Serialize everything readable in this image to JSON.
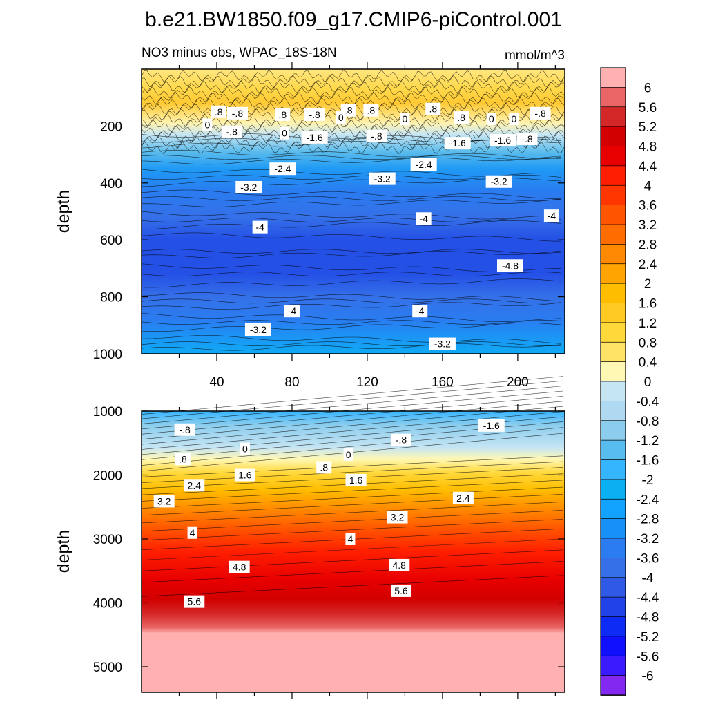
{
  "title": "b.e21.BW1850.f09_g17.CMIP6-piControl.001",
  "subtitle_left": "NO3 minus obs, WPAC_18S-18N",
  "subtitle_right": "mmol/m^3",
  "chart_data": [
    {
      "type": "heatmap",
      "panel": "upper",
      "variable": "NO3 minus obs",
      "region": "WPAC_18S-18N",
      "units": "mmol/m^3",
      "ylabel": "depth",
      "xlabel": "",
      "xlim": [
        0,
        225
      ],
      "ylim": [
        1000,
        0
      ],
      "xticks": [
        40,
        80,
        120,
        160,
        200
      ],
      "xtick_labels": [
        "40",
        "80",
        "120",
        "160",
        "200"
      ],
      "yticks": [
        200,
        400,
        600,
        800,
        1000
      ],
      "ytick_labels": [
        "200",
        "400",
        "600",
        "800",
        "1000"
      ],
      "contour_labels": [
        {
          "x": 41,
          "y": 150,
          "text": ".8"
        },
        {
          "x": 51,
          "y": 155,
          "text": "-.8"
        },
        {
          "x": 75,
          "y": 160,
          "text": ".8"
        },
        {
          "x": 92,
          "y": 160,
          "text": "-.8"
        },
        {
          "x": 110,
          "y": 145,
          "text": ".8"
        },
        {
          "x": 122,
          "y": 145,
          "text": ".8"
        },
        {
          "x": 155,
          "y": 140,
          "text": ".8"
        },
        {
          "x": 35,
          "y": 195,
          "text": "0"
        },
        {
          "x": 48,
          "y": 220,
          "text": "-.8"
        },
        {
          "x": 76,
          "y": 225,
          "text": "0"
        },
        {
          "x": 92,
          "y": 240,
          "text": "-1.6"
        },
        {
          "x": 106,
          "y": 170,
          "text": "0"
        },
        {
          "x": 125,
          "y": 235,
          "text": "-.8"
        },
        {
          "x": 140,
          "y": 175,
          "text": "0"
        },
        {
          "x": 170,
          "y": 170,
          "text": ".8"
        },
        {
          "x": 186,
          "y": 175,
          "text": "0"
        },
        {
          "x": 198,
          "y": 175,
          "text": "0"
        },
        {
          "x": 212,
          "y": 155,
          "text": "-.8"
        },
        {
          "x": 168,
          "y": 260,
          "text": "-1.6"
        },
        {
          "x": 192,
          "y": 250,
          "text": "-1.6"
        },
        {
          "x": 205,
          "y": 245,
          "text": "-.8"
        },
        {
          "x": 75,
          "y": 350,
          "text": "-2.4"
        },
        {
          "x": 150,
          "y": 335,
          "text": "-2.4"
        },
        {
          "x": 128,
          "y": 385,
          "text": "-3.2"
        },
        {
          "x": 190,
          "y": 395,
          "text": "-3.2"
        },
        {
          "x": 57,
          "y": 415,
          "text": "-3.2"
        },
        {
          "x": 150,
          "y": 525,
          "text": "-4"
        },
        {
          "x": 218,
          "y": 515,
          "text": "-4"
        },
        {
          "x": 63,
          "y": 555,
          "text": "-4"
        },
        {
          "x": 196,
          "y": 690,
          "text": "-4.8"
        },
        {
          "x": 80,
          "y": 850,
          "text": "-4"
        },
        {
          "x": 148,
          "y": 850,
          "text": "-4"
        },
        {
          "x": 62,
          "y": 915,
          "text": "-3.2"
        },
        {
          "x": 160,
          "y": 965,
          "text": "-3.2"
        }
      ]
    },
    {
      "type": "heatmap",
      "panel": "lower",
      "ylabel": "depth",
      "xlabel": "",
      "xlim": [
        0,
        225
      ],
      "ylim": [
        5400,
        1000
      ],
      "yticks": [
        1000,
        2000,
        3000,
        4000,
        5000
      ],
      "ytick_labels": [
        "1000",
        "2000",
        "3000",
        "4000",
        "5000"
      ],
      "contour_labels": [
        {
          "x": 23,
          "y": 1290,
          "text": "-.8"
        },
        {
          "x": 138,
          "y": 1450,
          "text": "-.8"
        },
        {
          "x": 186,
          "y": 1225,
          "text": "-1.6"
        },
        {
          "x": 55,
          "y": 1590,
          "text": "0"
        },
        {
          "x": 110,
          "y": 1680,
          "text": "0"
        },
        {
          "x": 22,
          "y": 1750,
          "text": ".8"
        },
        {
          "x": 97,
          "y": 1880,
          "text": ".8"
        },
        {
          "x": 55,
          "y": 2000,
          "text": "1.6"
        },
        {
          "x": 114,
          "y": 2080,
          "text": "1.6"
        },
        {
          "x": 28,
          "y": 2160,
          "text": "2.4"
        },
        {
          "x": 171,
          "y": 2360,
          "text": "2.4"
        },
        {
          "x": 12,
          "y": 2410,
          "text": "3.2"
        },
        {
          "x": 136,
          "y": 2660,
          "text": "3.2"
        },
        {
          "x": 27,
          "y": 2900,
          "text": "4"
        },
        {
          "x": 111,
          "y": 3000,
          "text": "4"
        },
        {
          "x": 52,
          "y": 3440,
          "text": "4.8"
        },
        {
          "x": 137,
          "y": 3410,
          "text": "4.8"
        },
        {
          "x": 28,
          "y": 3980,
          "text": "5.6"
        },
        {
          "x": 138,
          "y": 3810,
          "text": "5.6"
        }
      ]
    }
  ],
  "colorbar": {
    "labels": [
      "6",
      "5.6",
      "5.2",
      "4.8",
      "4.4",
      "4",
      "3.6",
      "3.2",
      "2.8",
      "2.4",
      "2",
      "1.6",
      "1.2",
      "0.8",
      "0.4",
      "0",
      "-0.4",
      "-0.8",
      "-1.2",
      "-1.6",
      "-2",
      "-2.4",
      "-2.8",
      "-3.2",
      "-3.6",
      "-4",
      "-4.4",
      "-4.8",
      "-5.2",
      "-5.6",
      "-6"
    ],
    "colors": [
      "#ffb1b1",
      "#ea6565",
      "#d42828",
      "#d20000",
      "#e80000",
      "#ff1f00",
      "#ff3600",
      "#ff5400",
      "#ff6d00",
      "#ff8900",
      "#ffa400",
      "#ffbd00",
      "#ffcb22",
      "#ffd83a",
      "#ffe366",
      "#fff8b5",
      "#c6e5f3",
      "#aed9f0",
      "#8ccdee",
      "#58bcee",
      "#36b5ff",
      "#0bb0f3",
      "#12a2ff",
      "#1790f8",
      "#2a7cf0",
      "#3570e8",
      "#2e5ae6",
      "#2142e8",
      "#0e2af5",
      "#1010ff",
      "#3a1bff",
      "#8328f1"
    ]
  }
}
